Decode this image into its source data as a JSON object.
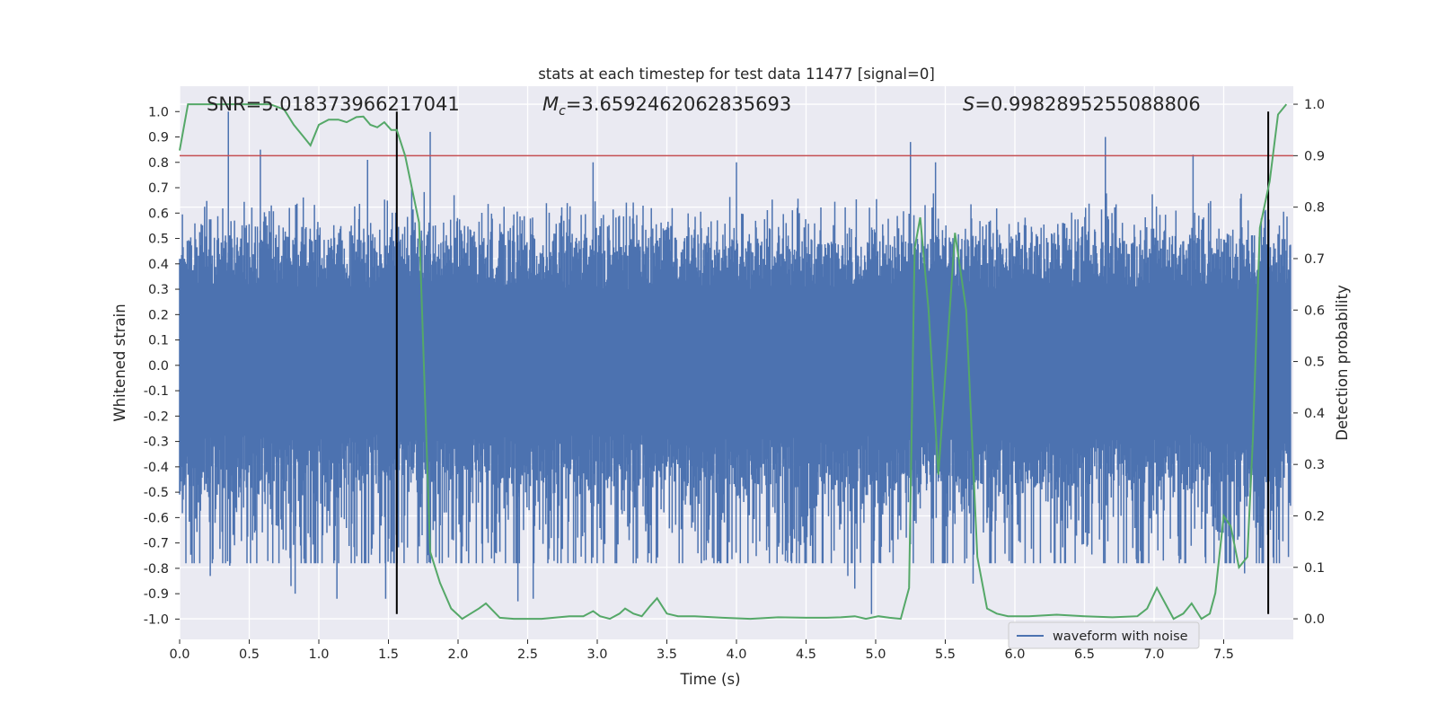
{
  "chart_data": {
    "type": "line",
    "title": "stats at each timestep for test data 11477 [signal=0]",
    "xlabel": "Time (s)",
    "ylabel": "Whitened strain",
    "ylabel_right": "Detection probability",
    "xlim": [
      0.0,
      8.0
    ],
    "ylim": [
      -1.08,
      1.1
    ],
    "ylim_right": [
      -0.04,
      1.035
    ],
    "x_ticks": [
      "0.0",
      "0.5",
      "1.0",
      "1.5",
      "2.0",
      "2.5",
      "3.0",
      "3.5",
      "4.0",
      "4.5",
      "5.0",
      "5.5",
      "6.0",
      "6.5",
      "7.0",
      "7.5"
    ],
    "y_ticks": [
      "1.0",
      "0.9",
      "0.8",
      "0.7",
      "0.6",
      "0.5",
      "0.4",
      "0.3",
      "0.2",
      "0.1",
      "0.0",
      "-0.1",
      "-0.2",
      "-0.3",
      "-0.4",
      "-0.5",
      "-0.6",
      "-0.7",
      "-0.8",
      "-0.9",
      "-1.0"
    ],
    "y_right_ticks": [
      "1.0",
      "0.9",
      "0.8",
      "0.7",
      "0.6",
      "0.5",
      "0.4",
      "0.3",
      "0.2",
      "0.1",
      "0.0"
    ],
    "annotations": {
      "snr": "SNR=5.018373966217041",
      "mc_symbol": "M",
      "mc_sub": "c",
      "mc_value": "=3.6592462062835693",
      "s_symbol": "S",
      "s_value": "=0.9982895255088806"
    },
    "threshold": {
      "value": 0.9,
      "axis": "right",
      "color": "#c44e52"
    },
    "vlines": {
      "x": [
        1.56,
        7.82
      ],
      "y_range": [
        -0.98,
        1.0
      ],
      "color": "#000000"
    },
    "series": [
      {
        "name": "waveform with noise",
        "axis": "left",
        "color": "#4c72b0",
        "kind": "noise-envelope",
        "n_samples": 1600,
        "envelope_pos": 0.4,
        "envelope_neg": -0.37,
        "typical_max": 0.6,
        "spikes": [
          {
            "x": 0.35,
            "y": 1.0
          },
          {
            "x": 0.58,
            "y": 0.85
          },
          {
            "x": 1.35,
            "y": 0.81
          },
          {
            "x": 1.8,
            "y": 0.92
          },
          {
            "x": 2.97,
            "y": 0.8
          },
          {
            "x": 4.0,
            "y": 0.8
          },
          {
            "x": 5.25,
            "y": 0.88
          },
          {
            "x": 5.43,
            "y": 0.8
          },
          {
            "x": 6.65,
            "y": 0.9
          },
          {
            "x": 7.28,
            "y": 0.83
          },
          {
            "x": 0.22,
            "y": -0.83
          },
          {
            "x": 0.36,
            "y": -0.79
          },
          {
            "x": 0.8,
            "y": -0.87
          },
          {
            "x": 0.83,
            "y": -0.9
          },
          {
            "x": 1.13,
            "y": -0.92
          },
          {
            "x": 1.48,
            "y": -0.92
          },
          {
            "x": 2.43,
            "y": -0.93
          },
          {
            "x": 2.54,
            "y": -0.92
          },
          {
            "x": 4.8,
            "y": -0.83
          },
          {
            "x": 4.85,
            "y": -0.88
          },
          {
            "x": 4.97,
            "y": -0.98
          },
          {
            "x": 5.7,
            "y": -0.86
          },
          {
            "x": 7.65,
            "y": -0.82
          }
        ]
      },
      {
        "name": "detection probability",
        "axis": "right",
        "color": "#55a868",
        "x": [
          0.0,
          0.06,
          0.15,
          0.25,
          0.35,
          0.45,
          0.55,
          0.65,
          0.75,
          0.82,
          0.88,
          0.94,
          1.0,
          1.07,
          1.14,
          1.2,
          1.27,
          1.32,
          1.37,
          1.42,
          1.47,
          1.52,
          1.56,
          1.62,
          1.72,
          1.8,
          1.87,
          1.95,
          2.03,
          2.09,
          2.15,
          2.2,
          2.3,
          2.4,
          2.6,
          2.8,
          2.9,
          2.97,
          3.02,
          3.09,
          3.16,
          3.2,
          3.26,
          3.32,
          3.38,
          3.43,
          3.5,
          3.58,
          3.7,
          3.9,
          4.1,
          4.3,
          4.5,
          4.65,
          4.75,
          4.85,
          4.93,
          5.02,
          5.1,
          5.18,
          5.24,
          5.28,
          5.32,
          5.38,
          5.45,
          5.52,
          5.57,
          5.65,
          5.73,
          5.8,
          5.87,
          5.95,
          6.1,
          6.3,
          6.5,
          6.7,
          6.88,
          6.95,
          7.02,
          7.08,
          7.14,
          7.21,
          7.27,
          7.34,
          7.4,
          7.44,
          7.5,
          7.55,
          7.61,
          7.67,
          7.71,
          7.76,
          7.83,
          7.89,
          7.95
        ],
        "y": [
          0.91,
          1.0,
          1.0,
          1.0,
          1.0,
          1.0,
          1.0,
          1.0,
          0.99,
          0.96,
          0.94,
          0.92,
          0.96,
          0.97,
          0.97,
          0.965,
          0.975,
          0.976,
          0.96,
          0.955,
          0.965,
          0.95,
          0.95,
          0.9,
          0.77,
          0.13,
          0.07,
          0.02,
          0.0,
          0.01,
          0.02,
          0.03,
          0.002,
          0.0,
          0.0,
          0.005,
          0.005,
          0.015,
          0.005,
          0.0,
          0.01,
          0.02,
          0.01,
          0.005,
          0.025,
          0.04,
          0.01,
          0.005,
          0.005,
          0.002,
          0.0,
          0.003,
          0.002,
          0.002,
          0.003,
          0.005,
          0.0,
          0.005,
          0.002,
          0.0,
          0.06,
          0.72,
          0.78,
          0.6,
          0.28,
          0.55,
          0.75,
          0.6,
          0.12,
          0.02,
          0.01,
          0.005,
          0.005,
          0.008,
          0.005,
          0.003,
          0.005,
          0.02,
          0.06,
          0.03,
          0.0,
          0.01,
          0.03,
          0.0,
          0.01,
          0.05,
          0.2,
          0.18,
          0.1,
          0.12,
          0.35,
          0.76,
          0.85,
          0.98,
          1.0
        ]
      }
    ],
    "legend": {
      "position": "lower-right",
      "entries": [
        "waveform with noise"
      ]
    },
    "grid": true
  }
}
